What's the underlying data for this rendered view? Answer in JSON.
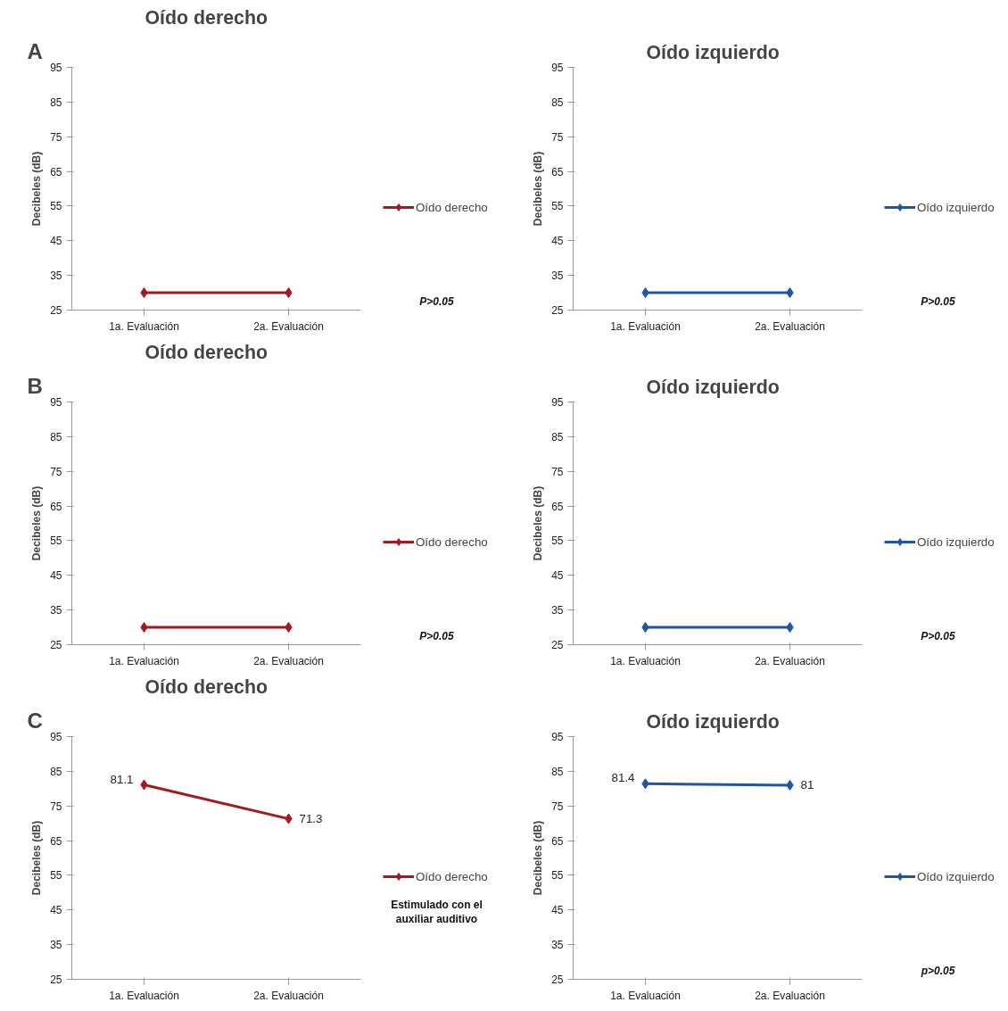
{
  "chart_data": [
    {
      "type": "line",
      "title": "Oído derecho",
      "ylabel": "Decibeles (dB)",
      "categories": [
        "1a. Evaluación",
        "2a. Evaluación"
      ],
      "ylim": [
        25,
        95
      ],
      "yticks": [
        25,
        35,
        45,
        55,
        65,
        75,
        85,
        95
      ],
      "marker": "diamond",
      "legend": "right",
      "annotations": [
        "A",
        "P>0.05"
      ],
      "series": [
        {
          "name": "Oído derecho",
          "color": "#a3191e",
          "values": [
            30,
            30
          ]
        }
      ]
    },
    {
      "type": "line",
      "title": "Oído izquierdo",
      "ylabel": "Decibeles (dB)",
      "categories": [
        "1a. Evaluación",
        "2a. Evaluación"
      ],
      "ylim": [
        25,
        95
      ],
      "yticks": [
        25,
        35,
        45,
        55,
        65,
        75,
        85,
        95
      ],
      "marker": "diamond",
      "legend": "right",
      "annotations": [
        "P>0.05"
      ],
      "series": [
        {
          "name": "Oído izquierdo",
          "color": "#1f55a8",
          "values": [
            30,
            30
          ]
        }
      ]
    },
    {
      "type": "line",
      "title": "Oído derecho",
      "ylabel": "Decibeles (dB)",
      "categories": [
        "1a. Evaluación",
        "2a. Evaluación"
      ],
      "ylim": [
        25,
        95
      ],
      "yticks": [
        25,
        35,
        45,
        55,
        65,
        75,
        85,
        95
      ],
      "marker": "diamond",
      "legend": "right",
      "annotations": [
        "B",
        "P>0.05"
      ],
      "series": [
        {
          "name": "Oído derecho",
          "color": "#a3191e",
          "values": [
            30,
            30
          ]
        }
      ]
    },
    {
      "type": "line",
      "title": "Oído izquierdo",
      "ylabel": "Decibeles (dB)",
      "categories": [
        "1a. Evaluación",
        "2a. Evaluación"
      ],
      "ylim": [
        25,
        95
      ],
      "yticks": [
        25,
        35,
        45,
        55,
        65,
        75,
        85,
        95
      ],
      "marker": "diamond",
      "legend": "right",
      "annotations": [
        "P>0.05"
      ],
      "series": [
        {
          "name": "Oído izquierdo",
          "color": "#1f55a8",
          "values": [
            30,
            30
          ]
        }
      ]
    },
    {
      "type": "line",
      "title": "Oído derecho",
      "ylabel": "Decibeles (dB)",
      "categories": [
        "1a. Evaluación",
        "2a. Evaluación"
      ],
      "ylim": [
        25,
        95
      ],
      "yticks": [
        25,
        35,
        45,
        55,
        65,
        75,
        85,
        95
      ],
      "marker": "diamond",
      "legend": "right",
      "annotations": [
        "C",
        "Estimulado con el auxiliar auditivo"
      ],
      "data_labels": true,
      "series": [
        {
          "name": "Oído derecho",
          "color": "#a3191e",
          "values": [
            81.1,
            71.3
          ]
        }
      ]
    },
    {
      "type": "line",
      "title": "Oído izquierdo",
      "ylabel": "Decibeles (dB)",
      "categories": [
        "1a. Evaluación",
        "2a. Evaluación"
      ],
      "ylim": [
        25,
        95
      ],
      "yticks": [
        25,
        35,
        45,
        55,
        65,
        75,
        85,
        95
      ],
      "marker": "diamond",
      "legend": "right",
      "annotations": [
        "p>0.05"
      ],
      "data_labels": true,
      "series": [
        {
          "name": "Oído izquierdo",
          "color": "#1f55a8",
          "values": [
            81.4,
            81
          ]
        }
      ]
    }
  ]
}
